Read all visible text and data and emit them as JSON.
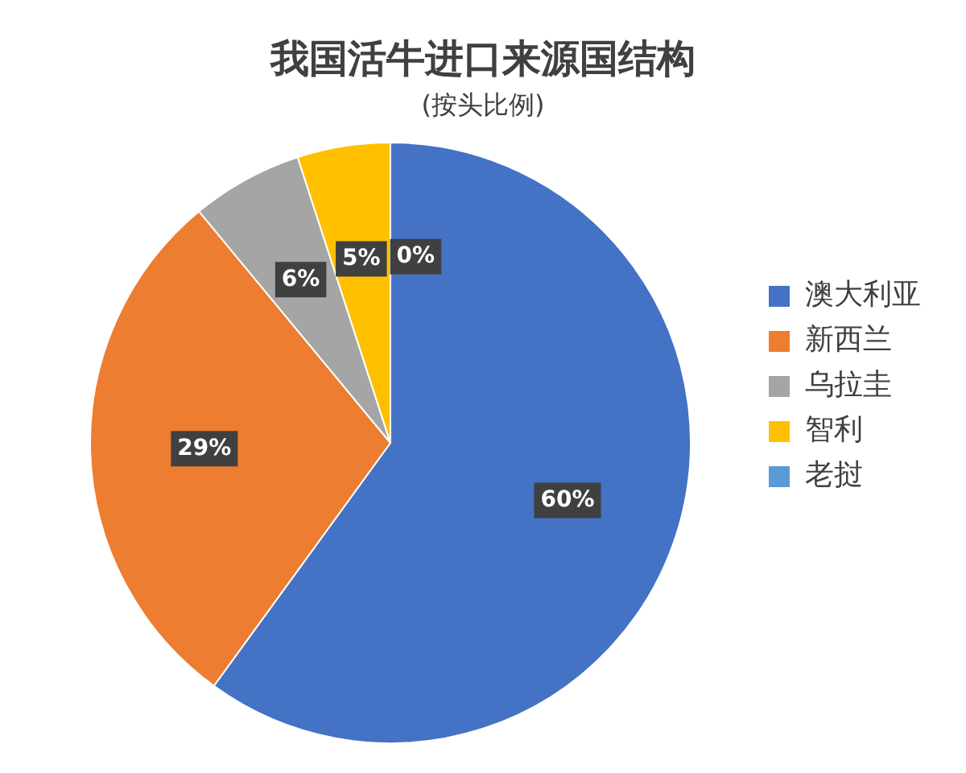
{
  "chart_data": {
    "type": "pie",
    "title": "我国活牛进口来源国结构",
    "subtitle": "(按头比例)",
    "categories": [
      "澳大利亚",
      "新西兰",
      "乌拉圭",
      "智利",
      "老挝"
    ],
    "values": [
      60,
      29,
      6,
      5,
      0
    ],
    "colors": [
      "#4472c4",
      "#ed7d31",
      "#a5a5a5",
      "#ffc000",
      "#5b9bd5"
    ],
    "value_labels": [
      "60%",
      "29%",
      "6%",
      "5%",
      "0%"
    ],
    "legend": "right"
  }
}
